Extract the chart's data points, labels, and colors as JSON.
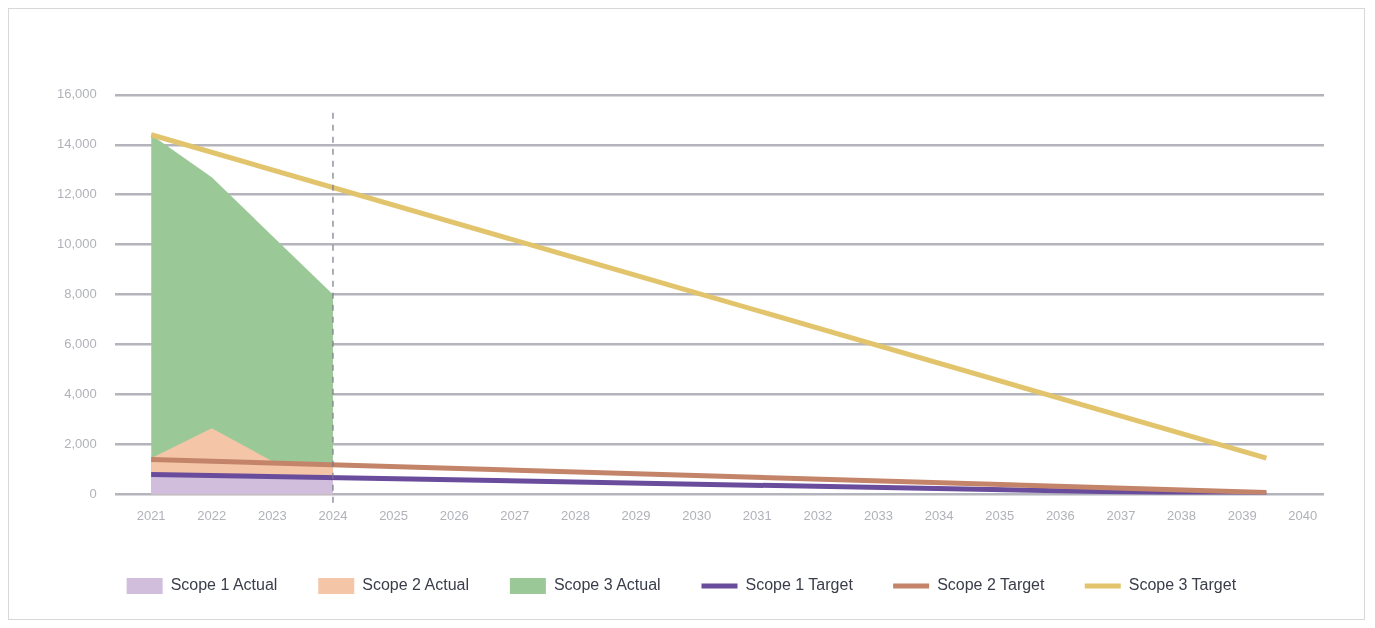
{
  "chart_data": {
    "type": "area",
    "xlim": [
      2020.4,
      2040.35
    ],
    "xticks": [
      2021,
      2022,
      2023,
      2024,
      2025,
      2026,
      2027,
      2028,
      2029,
      2030,
      2031,
      2032,
      2033,
      2034,
      2035,
      2036,
      2037,
      2038,
      2039,
      2040
    ],
    "ylim": [
      0,
      16000
    ],
    "yticks": [
      0,
      {
        "value": 2000,
        "label": "2,000"
      },
      {
        "value": 4000,
        "label": "4,000"
      },
      {
        "value": 6000,
        "label": "6,000"
      },
      {
        "value": 8000,
        "label": "8,000"
      },
      {
        "value": 10000,
        "label": "10,000"
      },
      {
        "value": 12000,
        "label": "12,000"
      },
      {
        "value": 14000,
        "label": "14,000"
      },
      {
        "value": 16000,
        "label": "16,000"
      }
    ],
    "grid": "y",
    "legend": "bottom",
    "marker": "none",
    "series": [
      {
        "name": "Scope 1 Actual",
        "type": "area",
        "color": "#d1bddc",
        "x": [
          2021,
          2022,
          2023,
          2024
        ],
        "values": [
          700,
          700,
          700,
          700
        ]
      },
      {
        "name": "Scope 2 Actual",
        "type": "area",
        "color": "#f5c5a7",
        "x": [
          2021,
          2022,
          2023,
          2024
        ],
        "values": [
          1450,
          2650,
          1330,
          1240
        ]
      },
      {
        "name": "Scope 3 Actual",
        "type": "area",
        "color": "#9bc897",
        "x": [
          2021,
          2022,
          2023,
          2024
        ],
        "values": [
          14400,
          12700,
          10350,
          8000
        ]
      },
      {
        "name": "Scope 1 Target",
        "type": "line",
        "color": "#6a4c9c",
        "x": [
          2021,
          2039.4
        ],
        "values": [
          800,
          0
        ]
      },
      {
        "name": "Scope 2 Target",
        "type": "line",
        "color": "#c4846a",
        "x": [
          2021,
          2039.4
        ],
        "values": [
          1400,
          80
        ]
      },
      {
        "name": "Scope 3 Target",
        "type": "line",
        "color": "#e2c46c",
        "x": [
          2021,
          2039.4
        ],
        "values": [
          14400,
          1450
        ]
      }
    ],
    "ref_lines": [
      {
        "axis": "x",
        "value": 2024,
        "color": "#777a85",
        "line_style": "dashed"
      }
    ]
  }
}
